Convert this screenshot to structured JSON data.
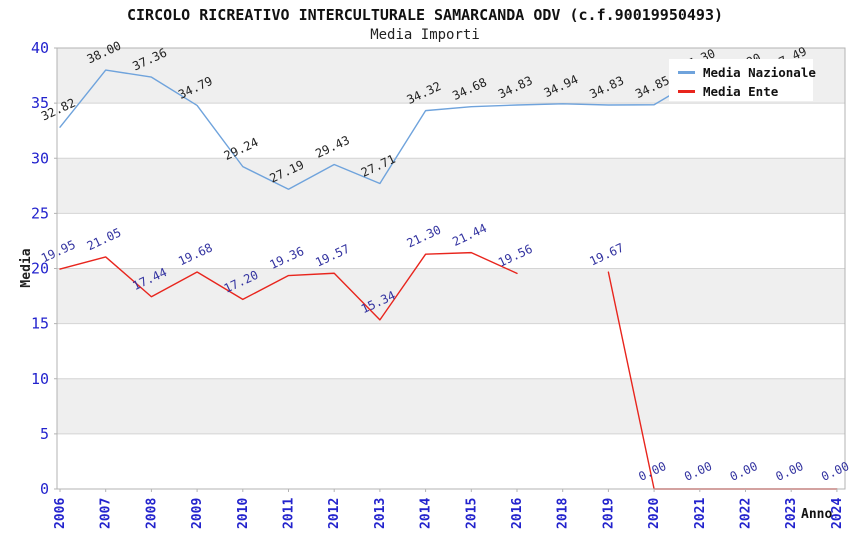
{
  "header": {
    "title": "CIRCOLO RICREATIVO INTERCULTURALE SAMARCANDA ODV (c.f.90019950493)",
    "subtitle": "Media Importi"
  },
  "axes": {
    "y_label": "Media",
    "x_label": "Anno",
    "y_ticks": [
      0,
      5,
      10,
      15,
      20,
      25,
      30,
      35,
      40
    ],
    "tick_color": "#2323cd"
  },
  "colors": {
    "plot_band": "#efefef",
    "gridline": "#d4d4d4",
    "plot_border": "#b3b3b3",
    "background": "#ffffff"
  },
  "chart_data": {
    "type": "line",
    "title": "CIRCOLO RICREATIVO INTERCULTURALE SAMARCANDA ODV (c.f.90019950493)",
    "subtitle": "Media Importi",
    "xlabel": "Anno",
    "ylabel": "Media",
    "ylim": [
      0,
      40
    ],
    "grid": "horizontal gridlines every 5 units with alternating gray bands",
    "legend_position": "top-right overlay",
    "categories": [
      "2006",
      "2007",
      "2008",
      "2009",
      "2010",
      "2011",
      "2012",
      "2013",
      "2014",
      "2015",
      "2016",
      "2018",
      "2019",
      "2020",
      "2021",
      "2022",
      "2023",
      "2024"
    ],
    "note": "year 2017 is absent from the x axis; Media Nazionale points for 2021-2023 are hidden behind the legend box (2023 label '.49' partially visible, 2021/2022 estimated); Media Nazionale has no 2024 point; Media Ente has no 2018 point (line gap 2016-2019)",
    "series": [
      {
        "name": "Media Nazionale",
        "color": "#6fa3dc",
        "label_color": "#222222",
        "values": [
          32.82,
          38.0,
          37.36,
          34.79,
          29.24,
          27.19,
          29.43,
          27.71,
          34.32,
          34.68,
          34.83,
          34.94,
          34.83,
          34.85,
          37.3,
          36.9,
          37.49,
          null
        ]
      },
      {
        "name": "Media Ente",
        "color": "#e8251d",
        "label_color": "#3333a0",
        "values": [
          19.95,
          21.05,
          17.44,
          19.68,
          17.2,
          19.36,
          19.57,
          15.34,
          21.3,
          21.44,
          19.56,
          null,
          19.67,
          0.0,
          0.0,
          0.0,
          0.0,
          0.0
        ]
      }
    ]
  }
}
